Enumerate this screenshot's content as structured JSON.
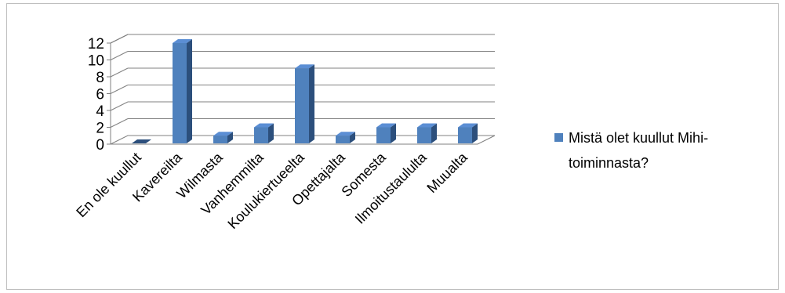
{
  "chart_data": {
    "type": "bar",
    "style": "3d-column",
    "categories": [
      "En ole kuullut",
      "Kavereilta",
      "Wilmasta",
      "Vanhemmilta",
      "Koulukiertueelta",
      "Opettajalta",
      "Somesta",
      "Ilmoitustaululta",
      "Muualta"
    ],
    "series": [
      {
        "name": "Mistä olet kuullut Mihi-toiminnasta?",
        "values": [
          0,
          12,
          1,
          2,
          9,
          1,
          2,
          2,
          2
        ]
      }
    ],
    "ylim": [
      0,
      12
    ],
    "yticks": [
      "0",
      "2",
      "4",
      "6",
      "8",
      "10",
      "12"
    ],
    "grid": true,
    "legend": "right",
    "legend_lines": [
      "Mistä olet kuullut Mihi-",
      "toiminnasta?"
    ],
    "colors": {
      "front": "#4f81bd",
      "side": "#2c4f7c",
      "top": "#5b8ed4",
      "grid": "#808080",
      "floor": "#808080"
    }
  }
}
